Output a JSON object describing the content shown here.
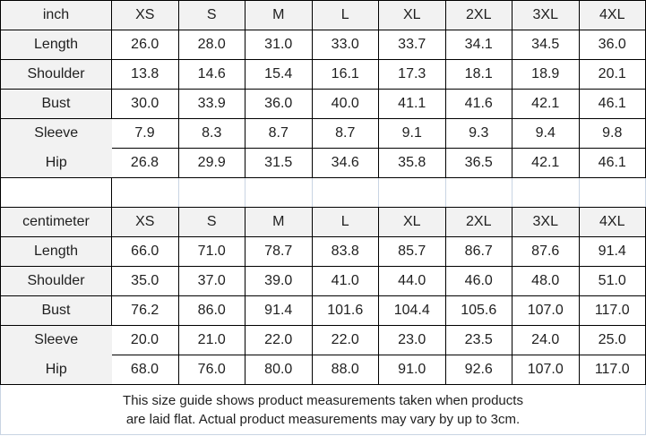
{
  "colors": {
    "border": "#000000",
    "light_border": "#c9d4e3",
    "header_bg": "#f2f2f2",
    "text": "#1f1f1f"
  },
  "table": {
    "size_headers": [
      "XS",
      "S",
      "M",
      "L",
      "XL",
      "2XL",
      "3XL",
      "4XL"
    ],
    "sections": [
      {
        "unit_label": "inch",
        "rows": [
          {
            "label": "Length",
            "values": [
              "26.0",
              "28.0",
              "31.0",
              "33.0",
              "33.7",
              "34.1",
              "34.5",
              "36.0"
            ]
          },
          {
            "label": "Shoulder",
            "values": [
              "13.8",
              "14.6",
              "15.4",
              "16.1",
              "17.3",
              "18.1",
              "18.9",
              "20.1"
            ]
          },
          {
            "label": "Bust",
            "values": [
              "30.0",
              "33.9",
              "36.0",
              "40.0",
              "41.1",
              "41.6",
              "42.1",
              "46.1"
            ]
          },
          {
            "label": "Sleeve",
            "values": [
              "7.9",
              "8.3",
              "8.7",
              "8.7",
              "9.1",
              "9.3",
              "9.4",
              "9.8"
            ]
          },
          {
            "label": "Hip",
            "values": [
              "26.8",
              "29.9",
              "31.5",
              "34.6",
              "35.8",
              "36.5",
              "42.1",
              "46.1"
            ]
          }
        ]
      },
      {
        "unit_label": "centimeter",
        "rows": [
          {
            "label": "Length",
            "values": [
              "66.0",
              "71.0",
              "78.7",
              "83.8",
              "85.7",
              "86.7",
              "87.6",
              "91.4"
            ]
          },
          {
            "label": "Shoulder",
            "values": [
              "35.0",
              "37.0",
              "39.0",
              "41.0",
              "44.0",
              "46.0",
              "48.0",
              "51.0"
            ]
          },
          {
            "label": "Bust",
            "values": [
              "76.2",
              "86.0",
              "91.4",
              "101.6",
              "104.4",
              "105.6",
              "107.0",
              "117.0"
            ]
          },
          {
            "label": "Sleeve",
            "values": [
              "20.0",
              "21.0",
              "22.0",
              "22.0",
              "23.0",
              "23.5",
              "24.0",
              "25.0"
            ]
          },
          {
            "label": "Hip",
            "values": [
              "68.0",
              "76.0",
              "80.0",
              "88.0",
              "91.0",
              "92.6",
              "107.0",
              "117.0"
            ]
          }
        ]
      }
    ],
    "footer_note": {
      "line1": "This size guide shows product measurements taken when products",
      "line2": "are laid flat. Actual product measurements may vary by up to 3cm."
    }
  }
}
